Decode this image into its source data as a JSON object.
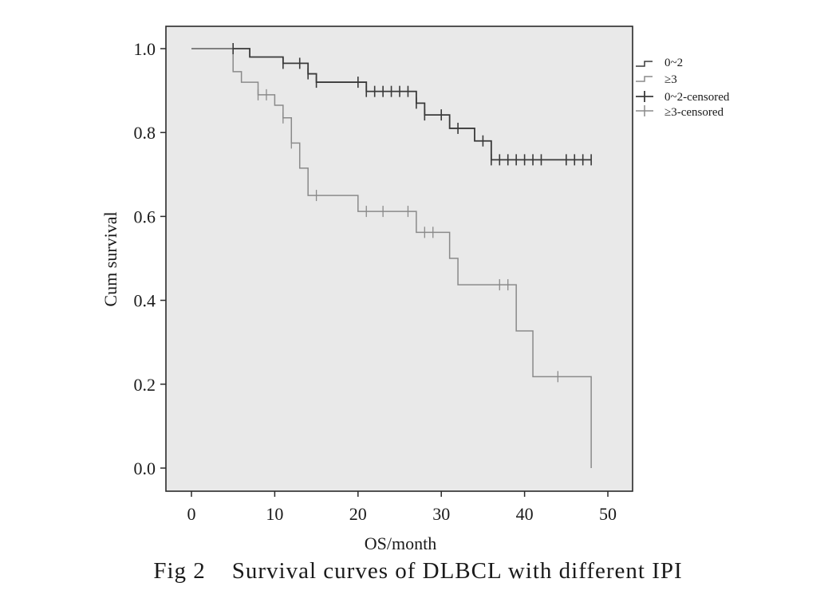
{
  "chart_data": {
    "type": "line",
    "subtype": "kaplan-meier-step",
    "xlabel": "OS/month",
    "ylabel": "Cum survival",
    "xlim": [
      0,
      50
    ],
    "ylim": [
      0.0,
      1.0
    ],
    "x_ticks": [
      0,
      10,
      20,
      30,
      40,
      50
    ],
    "y_ticks": [
      "0.0",
      "0.2",
      "0.4",
      "0.6",
      "0.8",
      "1.0"
    ],
    "grid": false,
    "legend_position": "top-right outside plot",
    "series": [
      {
        "name": "0~2",
        "color": "#3a3a3a",
        "steps": [
          [
            0,
            1.0
          ],
          [
            7,
            0.98
          ],
          [
            11,
            0.965
          ],
          [
            14,
            0.94
          ],
          [
            15,
            0.92
          ],
          [
            20,
            0.92
          ],
          [
            21,
            0.898
          ],
          [
            27,
            0.87
          ],
          [
            28,
            0.842
          ],
          [
            31,
            0.81
          ],
          [
            34,
            0.78
          ],
          [
            36,
            0.735
          ],
          [
            48,
            0.735
          ]
        ],
        "censored": [
          [
            5,
            1.0
          ],
          [
            11,
            0.965
          ],
          [
            13,
            0.965
          ],
          [
            14,
            0.94
          ],
          [
            15,
            0.92
          ],
          [
            20,
            0.92
          ],
          [
            21,
            0.898
          ],
          [
            22,
            0.898
          ],
          [
            23,
            0.898
          ],
          [
            24,
            0.898
          ],
          [
            25,
            0.898
          ],
          [
            26,
            0.898
          ],
          [
            27,
            0.87
          ],
          [
            28,
            0.842
          ],
          [
            30,
            0.842
          ],
          [
            32,
            0.81
          ],
          [
            35,
            0.78
          ],
          [
            36,
            0.735
          ],
          [
            37,
            0.735
          ],
          [
            38,
            0.735
          ],
          [
            39,
            0.735
          ],
          [
            40,
            0.735
          ],
          [
            41,
            0.735
          ],
          [
            42,
            0.735
          ],
          [
            45,
            0.735
          ],
          [
            46,
            0.735
          ],
          [
            47,
            0.735
          ],
          [
            48,
            0.735
          ]
        ]
      },
      {
        "name": "≥3",
        "color": "#8a8a8a",
        "steps": [
          [
            0,
            1.0
          ],
          [
            5,
            0.945
          ],
          [
            6,
            0.92
          ],
          [
            8,
            0.89
          ],
          [
            10,
            0.865
          ],
          [
            11,
            0.835
          ],
          [
            12,
            0.775
          ],
          [
            13,
            0.715
          ],
          [
            14,
            0.65
          ],
          [
            20,
            0.612
          ],
          [
            27,
            0.562
          ],
          [
            31,
            0.5
          ],
          [
            32,
            0.437
          ],
          [
            39,
            0.327
          ],
          [
            41,
            0.218
          ],
          [
            48,
            0.0
          ]
        ],
        "censored": [
          [
            8,
            0.89
          ],
          [
            9,
            0.89
          ],
          [
            11,
            0.835
          ],
          [
            12,
            0.775
          ],
          [
            15,
            0.65
          ],
          [
            21,
            0.612
          ],
          [
            23,
            0.612
          ],
          [
            26,
            0.612
          ],
          [
            28,
            0.562
          ],
          [
            29,
            0.562
          ],
          [
            37,
            0.437
          ],
          [
            38,
            0.437
          ],
          [
            44,
            0.218
          ]
        ]
      }
    ],
    "legend": [
      "0~2",
      "≥3",
      "0~2-censored",
      "≥3-censored"
    ]
  },
  "caption": {
    "label": "Fig 2",
    "text": "Survival curves of DLBCL with different IPI"
  },
  "colors": {
    "plot_background": "#e9e9e9",
    "frame": "#2a2a2a"
  }
}
